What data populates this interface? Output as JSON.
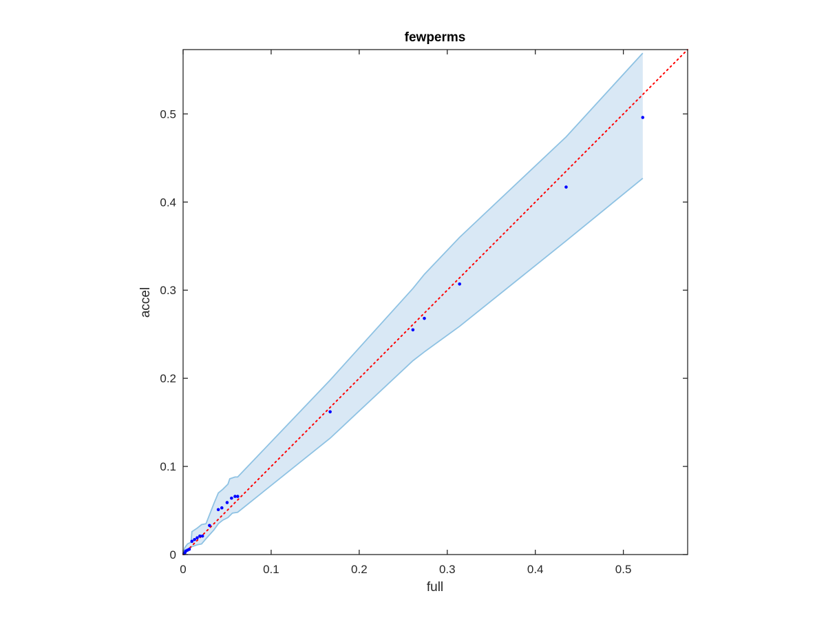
{
  "chart_data": {
    "type": "scatter",
    "title": "fewperms",
    "xlabel": "full",
    "ylabel": "accel",
    "xlim": [
      0,
      0.573
    ],
    "ylim": [
      0,
      0.573
    ],
    "xticks": [
      0,
      0.1,
      0.2,
      0.3,
      0.4,
      0.5
    ],
    "yticks": [
      0,
      0.1,
      0.2,
      0.3,
      0.4,
      0.5
    ],
    "xtick_labels": [
      "0",
      "0.1",
      "0.2",
      "0.3",
      "0.4",
      "0.5"
    ],
    "ytick_labels": [
      "0",
      "0.1",
      "0.2",
      "0.3",
      "0.4",
      "0.5"
    ],
    "grid": false,
    "reference_line": {
      "style": "dotted",
      "color": "#ff0000",
      "from": [
        0,
        0
      ],
      "to": [
        0.573,
        0.573
      ]
    },
    "band": {
      "fill": "#d9e8f5",
      "edge": "#8ec2e3",
      "upper": [
        [
          0.0,
          0.001
        ],
        [
          0.002,
          0.008
        ],
        [
          0.005,
          0.012
        ],
        [
          0.009,
          0.014
        ],
        [
          0.01,
          0.026
        ],
        [
          0.016,
          0.03
        ],
        [
          0.021,
          0.034
        ],
        [
          0.026,
          0.035
        ],
        [
          0.035,
          0.058
        ],
        [
          0.04,
          0.07
        ],
        [
          0.045,
          0.074
        ],
        [
          0.051,
          0.08
        ],
        [
          0.053,
          0.086
        ],
        [
          0.059,
          0.088
        ],
        [
          0.062,
          0.088
        ],
        [
          0.167,
          0.198
        ],
        [
          0.261,
          0.302
        ],
        [
          0.274,
          0.318
        ],
        [
          0.314,
          0.36
        ],
        [
          0.435,
          0.474
        ],
        [
          0.522,
          0.569
        ]
      ],
      "lower": [
        [
          0.522,
          0.427
        ],
        [
          0.435,
          0.356
        ],
        [
          0.314,
          0.259
        ],
        [
          0.274,
          0.23
        ],
        [
          0.261,
          0.22
        ],
        [
          0.167,
          0.132
        ],
        [
          0.062,
          0.048
        ],
        [
          0.056,
          0.047
        ],
        [
          0.051,
          0.042
        ],
        [
          0.045,
          0.039
        ],
        [
          0.04,
          0.035
        ],
        [
          0.035,
          0.028
        ],
        [
          0.026,
          0.018
        ],
        [
          0.021,
          0.012
        ],
        [
          0.016,
          0.011
        ],
        [
          0.01,
          0.009
        ],
        [
          0.005,
          0.004
        ],
        [
          0.002,
          0.001
        ],
        [
          0.0,
          0.0
        ]
      ]
    },
    "points": {
      "color": "#0000ff",
      "x": [
        0.001,
        0.002,
        0.003,
        0.005,
        0.007,
        0.01,
        0.013,
        0.016,
        0.019,
        0.022,
        0.03,
        0.04,
        0.044,
        0.05,
        0.055,
        0.059,
        0.062,
        0.167,
        0.261,
        0.274,
        0.314,
        0.435,
        0.522
      ],
      "y": [
        0.001,
        0.002,
        0.004,
        0.005,
        0.006,
        0.015,
        0.017,
        0.019,
        0.021,
        0.021,
        0.033,
        0.051,
        0.053,
        0.059,
        0.064,
        0.066,
        0.066,
        0.162,
        0.255,
        0.268,
        0.307,
        0.417,
        0.496
      ]
    }
  }
}
